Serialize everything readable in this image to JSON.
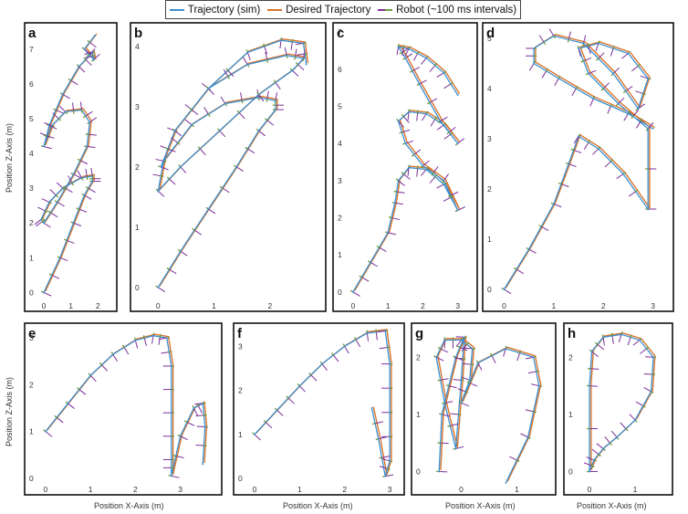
{
  "legend": {
    "items": [
      {
        "label": "Trajectory (sim)",
        "color": "#3a8fd0"
      },
      {
        "label": "Desired Trajectory",
        "color": "#d9742b"
      },
      {
        "label": "Robot (~100 ms intervals)",
        "color": "#7b2f9a",
        "color2": "#6aa13c"
      }
    ]
  },
  "axis_labels": {
    "y_top": "Position Z-Axis (m)",
    "y_bottom": "Position Z-Axis (m)",
    "x_e": "Position X-Axis (m)",
    "x_f": "Position X-Axis (m)",
    "x_g": "Position X-Axis (m)",
    "x_h": "Position X-Axis (m)"
  },
  "chart_data": [
    {
      "panel": "a",
      "type": "line",
      "xlim": [
        -0.1,
        2.5
      ],
      "ylim": [
        -0.2,
        7.6
      ],
      "xticks": [
        0,
        1,
        2
      ],
      "yticks": [
        0,
        1,
        2,
        3,
        4,
        5,
        6,
        7
      ],
      "series": [
        {
          "x": [
            0.0,
            0.6,
            1.1,
            1.5,
            1.8,
            1.8,
            1.4,
            0.7,
            0.2,
            -0.1,
            0.0,
            0.5,
            1.1,
            1.6,
            1.7,
            1.4,
            0.8,
            0.3,
            0.0,
            0.2,
            0.7,
            1.3,
            1.8,
            1.85,
            1.5,
            1.9
          ],
          "y": [
            0.0,
            1.0,
            2.0,
            2.8,
            3.2,
            3.35,
            3.3,
            3.0,
            2.6,
            2.1,
            2.0,
            2.6,
            3.4,
            4.2,
            4.9,
            5.25,
            5.2,
            4.8,
            4.2,
            4.8,
            5.7,
            6.5,
            6.9,
            6.7,
            7.0,
            7.4
          ]
        }
      ]
    },
    {
      "panel": "b",
      "type": "line",
      "xlim": [
        -0.2,
        2.9
      ],
      "ylim": [
        -0.2,
        4.3
      ],
      "xticks": [
        0,
        1,
        2
      ],
      "yticks": [
        0,
        1,
        2,
        3,
        4
      ],
      "series": [
        {
          "x": [
            0.0,
            0.4,
            0.9,
            1.4,
            1.8,
            2.1,
            2.1,
            1.8,
            1.2,
            0.6,
            0.1,
            0.0,
            0.4,
            1.1,
            1.8,
            2.4,
            2.6,
            2.3,
            1.6,
            0.9,
            0.3,
            0.05,
            0.3,
            0.9,
            1.6,
            2.2,
            2.6,
            2.65
          ],
          "y": [
            0.0,
            0.6,
            1.3,
            2.0,
            2.6,
            2.95,
            3.1,
            3.15,
            3.05,
            2.7,
            2.1,
            1.6,
            2.0,
            2.6,
            3.2,
            3.6,
            3.8,
            3.85,
            3.7,
            3.3,
            2.6,
            2.0,
            2.6,
            3.3,
            3.9,
            4.1,
            4.05,
            3.7
          ]
        }
      ]
    },
    {
      "panel": "c",
      "type": "line",
      "xlim": [
        -0.1,
        3.4
      ],
      "ylim": [
        -0.2,
        7.1
      ],
      "xticks": [
        0,
        1,
        2,
        3
      ],
      "yticks": [
        0,
        1,
        2,
        3,
        4,
        5,
        6,
        7
      ],
      "series": [
        {
          "x": [
            0.0,
            0.5,
            1.0,
            1.2,
            1.3,
            1.6,
            2.1,
            2.6,
            3.0,
            2.6,
            2.0,
            1.5,
            1.3,
            1.6,
            2.1,
            2.6,
            3.0,
            2.5,
            1.9,
            1.5,
            1.3,
            1.6,
            2.1,
            2.6,
            3.0
          ],
          "y": [
            0.0,
            0.8,
            1.6,
            2.4,
            3.0,
            3.35,
            3.3,
            2.9,
            2.2,
            3.0,
            3.4,
            4.0,
            4.6,
            4.85,
            4.8,
            4.5,
            4.0,
            4.6,
            5.6,
            6.3,
            6.6,
            6.55,
            6.3,
            5.9,
            5.3
          ]
        }
      ]
    },
    {
      "panel": "d",
      "type": "line",
      "xlim": [
        -0.1,
        3.3
      ],
      "ylim": [
        -0.2,
        5.2
      ],
      "xticks": [
        0,
        1,
        2,
        3
      ],
      "yticks": [
        0,
        1,
        2,
        3,
        4,
        5
      ],
      "series": [
        {
          "x": [
            0.0,
            0.5,
            1.0,
            1.3,
            1.5,
            1.9,
            2.4,
            2.9,
            2.9,
            2.3,
            1.7,
            1.5,
            1.9,
            2.5,
            2.9,
            2.7,
            2.2,
            1.6,
            1.0,
            0.6,
            0.6,
            1.1,
            1.8,
            2.5,
            3.0
          ],
          "y": [
            0.0,
            0.8,
            1.7,
            2.5,
            3.05,
            2.8,
            2.3,
            1.6,
            3.2,
            3.7,
            4.3,
            4.8,
            4.9,
            4.7,
            4.2,
            3.6,
            4.3,
            4.9,
            5.05,
            4.8,
            4.5,
            4.2,
            3.8,
            3.5,
            3.2
          ]
        }
      ]
    },
    {
      "panel": "e",
      "type": "line",
      "xlim": [
        -0.1,
        3.8
      ],
      "ylim": [
        -0.1,
        3.2
      ],
      "xticks": [
        0,
        1,
        2,
        3
      ],
      "yticks": [
        0,
        1,
        2,
        3
      ],
      "series": [
        {
          "x": [
            0.0,
            0.5,
            1.0,
            1.5,
            2.0,
            2.4,
            2.7,
            2.8,
            2.8,
            2.8,
            2.8,
            3.0,
            3.3,
            3.5,
            3.55,
            3.5
          ],
          "y": [
            1.0,
            1.6,
            2.2,
            2.65,
            2.95,
            3.05,
            3.0,
            2.4,
            1.4,
            0.4,
            0.05,
            0.9,
            1.5,
            1.6,
            1.1,
            0.3
          ]
        }
      ]
    },
    {
      "panel": "f",
      "type": "line",
      "xlim": [
        -0.1,
        3.2
      ],
      "ylim": [
        -0.1,
        3.4
      ],
      "xticks": [
        0,
        1,
        2,
        3
      ],
      "yticks": [
        0,
        1,
        2,
        3
      ],
      "series": [
        {
          "x": [
            0.0,
            0.5,
            1.0,
            1.5,
            2.0,
            2.5,
            2.9,
            3.0,
            3.0,
            3.0,
            2.9,
            2.75,
            2.6
          ],
          "y": [
            1.0,
            1.55,
            2.1,
            2.6,
            3.0,
            3.3,
            3.35,
            2.6,
            1.5,
            0.4,
            0.05,
            0.9,
            1.6
          ]
        }
      ]
    },
    {
      "panel": "g",
      "type": "line",
      "xlim": [
        -0.6,
        1.6
      ],
      "ylim": [
        -0.2,
        2.5
      ],
      "xticks": [
        0,
        1
      ],
      "yticks": [
        0,
        1,
        2
      ],
      "series": [
        {
          "x": [
            -0.4,
            -0.35,
            -0.1,
            0.05,
            0.0,
            -0.1,
            -0.3,
            -0.45,
            -0.3,
            0.0,
            0.2,
            0.15,
            0.0,
            0.3,
            0.8,
            1.3,
            1.4,
            1.2,
            0.8
          ],
          "y": [
            0.0,
            1.0,
            2.0,
            2.35,
            1.6,
            0.4,
            1.2,
            2.0,
            2.3,
            2.3,
            2.15,
            1.6,
            1.2,
            1.9,
            2.15,
            2.0,
            1.5,
            0.6,
            -0.2
          ]
        }
      ]
    },
    {
      "panel": "h",
      "type": "line",
      "xlim": [
        -0.2,
        1.7
      ],
      "ylim": [
        -0.2,
        2.5
      ],
      "xticks": [
        0,
        1
      ],
      "yticks": [
        0,
        1,
        2
      ],
      "series": [
        {
          "x": [
            0.0,
            0.0,
            0.05,
            0.3,
            0.7,
            1.1,
            1.4,
            1.35,
            1.0,
            0.6,
            0.3,
            0.1,
            0.0
          ],
          "y": [
            0.0,
            1.5,
            2.1,
            2.35,
            2.4,
            2.3,
            2.0,
            1.4,
            0.9,
            0.6,
            0.4,
            0.2,
            0.0
          ]
        }
      ]
    }
  ]
}
